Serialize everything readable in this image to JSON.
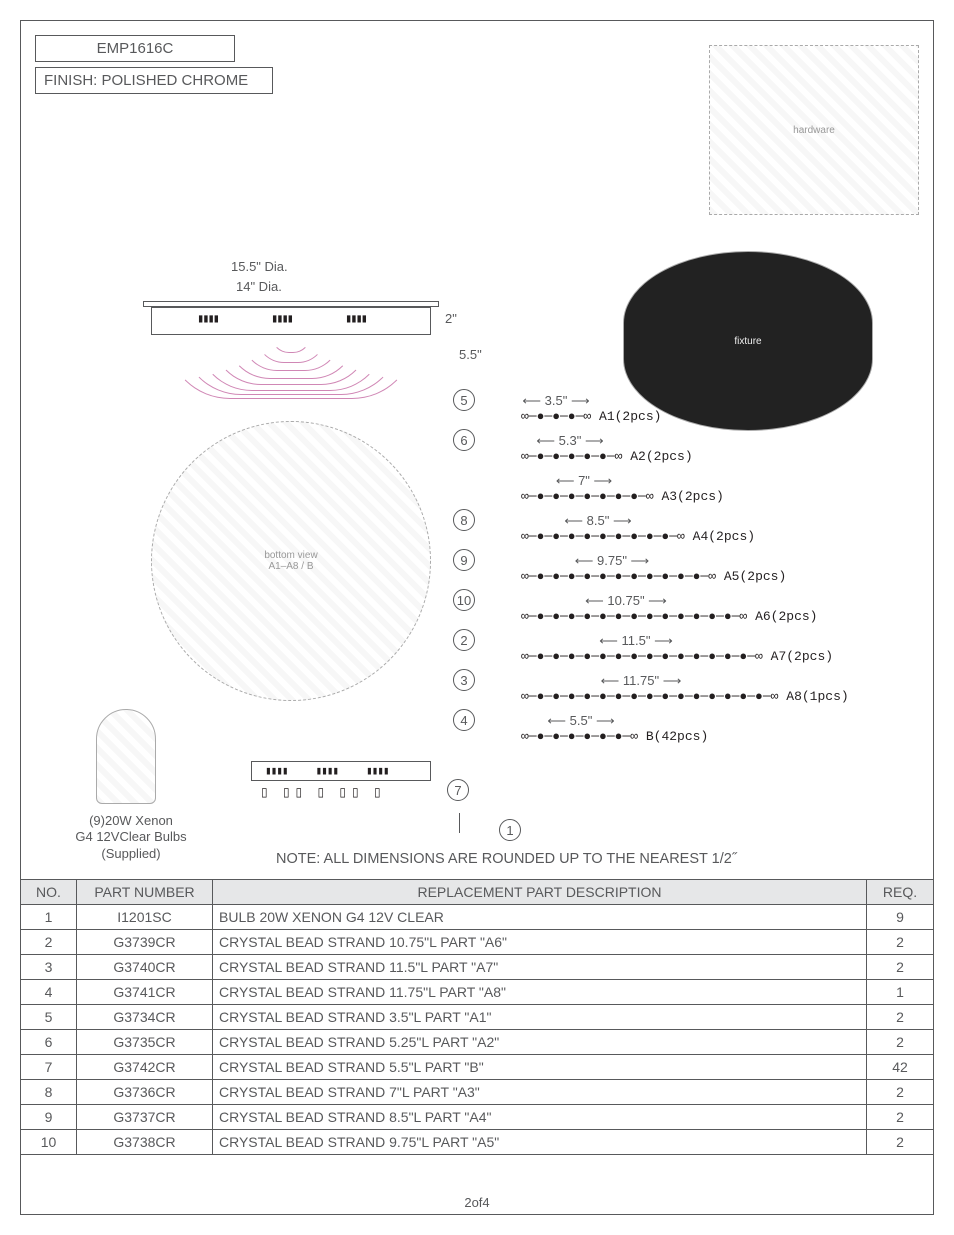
{
  "header": {
    "model": "EMP1616C",
    "finish": "FINISH: POLISHED CHROME"
  },
  "top_view": {
    "dia_outer": "15.5\" Dia.",
    "dia_inner": "14\" Dia.",
    "height_small": "2\"",
    "height_large": "5.5\""
  },
  "strands": [
    {
      "callout": "5",
      "len": "3.5\"",
      "label": "A1(2pcs)"
    },
    {
      "callout": "6",
      "len": "5.3\"",
      "label": "A2(2pcs)"
    },
    {
      "callout": "",
      "len": "7\"",
      "label": "A3(2pcs)"
    },
    {
      "callout": "8",
      "len": "8.5\"",
      "label": "A4(2pcs)"
    },
    {
      "callout": "9",
      "len": "9.75\"",
      "label": "A5(2pcs)"
    },
    {
      "callout": "10",
      "len": "10.75\"",
      "label": "A6(2pcs)"
    },
    {
      "callout": "2",
      "len": "11.5\"",
      "label": "A7(2pcs)"
    },
    {
      "callout": "3",
      "len": "11.75\"",
      "label": "A8(1pcs)"
    },
    {
      "callout": "4",
      "len": "5.5\"",
      "label": "B(42pcs)"
    }
  ],
  "extra_callouts": {
    "seven": "7",
    "one": "1"
  },
  "bulb_note": {
    "l1": "(9)20W Xenon",
    "l2": "G4 12VClear Bulbs",
    "l3": "(Supplied)"
  },
  "note": "NOTE:  ALL DIMENSIONS ARE ROUNDED UP TO THE NEAREST  1/2˝",
  "table": {
    "headers": {
      "no": "NO.",
      "pn": "PART NUMBER",
      "desc": "REPLACEMENT PART DESCRIPTION",
      "req": "REQ."
    },
    "rows": [
      {
        "no": "1",
        "pn": "I1201SC",
        "desc": "BULB 20W XENON G4 12V CLEAR",
        "req": "9"
      },
      {
        "no": "2",
        "pn": "G3739CR",
        "desc": "CRYSTAL BEAD STRAND 10.75\"L PART \"A6\"",
        "req": "2"
      },
      {
        "no": "3",
        "pn": "G3740CR",
        "desc": "CRYSTAL BEAD STRAND 11.5\"L PART \"A7\"",
        "req": "2"
      },
      {
        "no": "4",
        "pn": "G3741CR",
        "desc": "CRYSTAL BEAD STRAND 11.75\"L PART \"A8\"",
        "req": "1"
      },
      {
        "no": "5",
        "pn": "G3734CR",
        "desc": "CRYSTAL BEAD STRAND 3.5\"L PART \"A1\"",
        "req": "2"
      },
      {
        "no": "6",
        "pn": "G3735CR",
        "desc": "CRYSTAL BEAD STRAND 5.25\"L PART \"A2\"",
        "req": "2"
      },
      {
        "no": "7",
        "pn": "G3742CR",
        "desc": "CRYSTAL BEAD STRAND 5.5\"L PART \"B\"",
        "req": "42"
      },
      {
        "no": "8",
        "pn": "G3736CR",
        "desc": "CRYSTAL BEAD STRAND 7\"L PART \"A3\"",
        "req": "2"
      },
      {
        "no": "9",
        "pn": "G3737CR",
        "desc": "CRYSTAL BEAD STRAND 8.5\"L PART \"A4\"",
        "req": "2"
      },
      {
        "no": "10",
        "pn": "G3738CR",
        "desc": "CRYSTAL BEAD STRAND 9.75\"L PART \"A5\"",
        "req": "2"
      }
    ]
  },
  "footer": "2of4",
  "style": {
    "text_color": "#58595b",
    "header_bg": "#e6e7e8",
    "arc_color": "#d087b5",
    "mono_font": "Courier New"
  }
}
